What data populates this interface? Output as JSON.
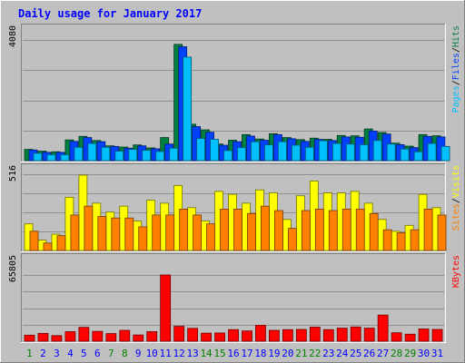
{
  "chart_data": {
    "type": "bar",
    "title": "Daily usage for January 2017",
    "categories": [
      "1",
      "2",
      "3",
      "4",
      "5",
      "6",
      "7",
      "8",
      "9",
      "10",
      "11",
      "12",
      "13",
      "14",
      "15",
      "16",
      "17",
      "18",
      "19",
      "20",
      "21",
      "22",
      "23",
      "24",
      "25",
      "26",
      "27",
      "28",
      "29",
      "30",
      "31"
    ],
    "weekend_days": [
      "1",
      "7",
      "8",
      "14",
      "15",
      "21",
      "22",
      "28",
      "29"
    ],
    "panels": [
      {
        "name": "hits-files-pages",
        "max_label": "4080",
        "ymax": 4080,
        "series": [
          {
            "name": "Hits",
            "color": "#008040",
            "values": [
              380,
              320,
              300,
              700,
              820,
              680,
              500,
              460,
              530,
              430,
              780,
              3930,
              1230,
              1040,
              560,
              690,
              880,
              730,
              910,
              780,
              710,
              760,
              720,
              850,
              840,
              1070,
              950,
              590,
              490,
              880,
              840
            ]
          },
          {
            "name": "Files",
            "color": "#0040ff",
            "values": [
              360,
              280,
              280,
              650,
              780,
              640,
              480,
              420,
              500,
              400,
              560,
              3850,
              1150,
              960,
              520,
              640,
              830,
              690,
              880,
              740,
              650,
              720,
              680,
              800,
              790,
              1000,
              900,
              540,
              440,
              820,
              800
            ]
          },
          {
            "name": "Pages",
            "color": "#00c0ff",
            "values": [
              250,
              200,
              200,
              450,
              580,
              450,
              320,
              380,
              350,
              310,
              420,
              3500,
              750,
              720,
              340,
              440,
              640,
              530,
              640,
              520,
              450,
              670,
              580,
              560,
              540,
              680,
              560,
              390,
              300,
              580,
              480
            ]
          }
        ]
      },
      {
        "name": "visits-sites",
        "max_label": "516",
        "ymax": 516,
        "series": [
          {
            "name": "Visits",
            "color": "#ffff00",
            "values": [
              180,
              70,
              110,
              360,
              510,
              320,
              260,
              300,
              200,
              340,
              320,
              440,
              290,
              200,
              400,
              380,
              320,
              410,
              390,
              210,
              370,
              470,
              390,
              390,
              400,
              320,
              210,
              130,
              170,
              380,
              290
            ]
          },
          {
            "name": "Sites",
            "color": "#ff8000",
            "values": [
              130,
              50,
              100,
              240,
              300,
              230,
              220,
              220,
              160,
              240,
              240,
              280,
              240,
              180,
              280,
              280,
              250,
              300,
              270,
              150,
              270,
              280,
              270,
              280,
              280,
              250,
              140,
              120,
              140,
              280,
              240
            ]
          }
        ]
      },
      {
        "name": "kbytes",
        "max_label": "65805",
        "ymax": 65805,
        "series": [
          {
            "name": "KBytes",
            "color": "#ff0000",
            "values": [
              6000,
              7800,
              5600,
              9500,
              13800,
              9800,
              7600,
              10800,
              6200,
              9500,
              65800,
              14800,
              12800,
              8000,
              8200,
              11500,
              10200,
              15800,
              10800,
              11500,
              11700,
              14000,
              11500,
              13000,
              14200,
              13000,
              26000,
              8400,
              7000,
              12200,
              11700
            ]
          }
        ]
      }
    ],
    "legend_right": [
      {
        "label": "Hits",
        "color": "#008040"
      },
      {
        "label": "Files",
        "color": "#0040ff"
      },
      {
        "label": "Pages",
        "color": "#00c0ff"
      },
      {
        "label": "Visits",
        "color": "#ffff00"
      },
      {
        "label": "Sites",
        "color": "#ff8000"
      },
      {
        "label": "KBytes",
        "color": "#ff0000"
      }
    ],
    "legend_separator": "/",
    "colors": {
      "background": "#c0c0c0",
      "title": "#0000ff",
      "weekday_label": "#0000ff",
      "weekend_label": "#008000"
    }
  }
}
